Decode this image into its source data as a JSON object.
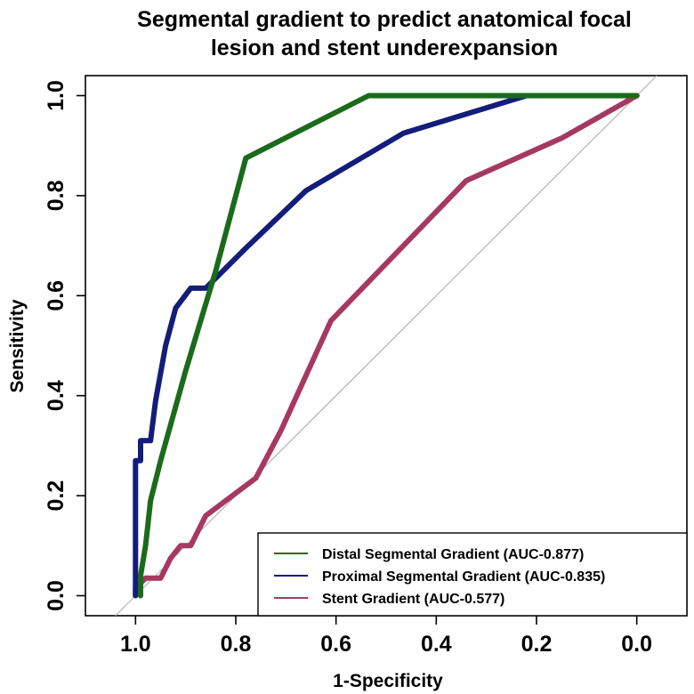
{
  "chart_data": {
    "type": "line",
    "title_lines": [
      "Segmental gradient to predict anatomical focal",
      "lesion and stent underexpansion"
    ],
    "xlabel": "1-Specificity",
    "ylabel": "Sensitivity",
    "xlim": [
      1.1,
      -0.1
    ],
    "ylim": [
      -0.04,
      1.04
    ],
    "x_ticks": [
      1.0,
      0.8,
      0.6,
      0.4,
      0.2,
      0.0
    ],
    "x_tick_labels": [
      "1.0",
      "0.8",
      "0.6",
      "0.4",
      "0.2",
      "0.0"
    ],
    "y_ticks": [
      0.0,
      0.2,
      0.4,
      0.6,
      0.8,
      1.0
    ],
    "y_tick_labels": [
      "0.0",
      "0.2",
      "0.4",
      "0.6",
      "0.8",
      "1.0"
    ],
    "diagonal": {
      "from": [
        1.04,
        -0.04
      ],
      "to": [
        -0.04,
        1.04
      ],
      "color": "#b3b3b3"
    },
    "legend_position": "bottom-right",
    "series": [
      {
        "name": "Distal Segmental Gradient (AUC-0.877)",
        "color": "#1a6b1a",
        "points": [
          [
            0.99,
            0.0
          ],
          [
            0.99,
            0.04
          ],
          [
            0.98,
            0.1
          ],
          [
            0.97,
            0.19
          ],
          [
            0.95,
            0.27
          ],
          [
            0.9,
            0.45
          ],
          [
            0.84,
            0.65
          ],
          [
            0.78,
            0.875
          ],
          [
            0.535,
            1.0
          ],
          [
            0.0,
            1.0
          ]
        ]
      },
      {
        "name": "Proximal Segmental Gradient (AUC-0.835)",
        "color": "#131d7a",
        "points": [
          [
            1.0,
            0.0
          ],
          [
            1.0,
            0.27
          ],
          [
            0.99,
            0.27
          ],
          [
            0.99,
            0.31
          ],
          [
            0.97,
            0.31
          ],
          [
            0.96,
            0.39
          ],
          [
            0.94,
            0.5
          ],
          [
            0.92,
            0.575
          ],
          [
            0.89,
            0.615
          ],
          [
            0.86,
            0.615
          ],
          [
            0.78,
            0.695
          ],
          [
            0.66,
            0.81
          ],
          [
            0.465,
            0.925
          ],
          [
            0.22,
            1.0
          ],
          [
            0.0,
            1.0
          ]
        ]
      },
      {
        "name": "Stent Gradient (AUC-0.577)",
        "color": "#a63862",
        "points": [
          [
            1.0,
            0.0
          ],
          [
            1.0,
            0.015
          ],
          [
            0.98,
            0.035
          ],
          [
            0.95,
            0.035
          ],
          [
            0.93,
            0.075
          ],
          [
            0.91,
            0.1
          ],
          [
            0.89,
            0.1
          ],
          [
            0.86,
            0.16
          ],
          [
            0.76,
            0.235
          ],
          [
            0.71,
            0.33
          ],
          [
            0.61,
            0.55
          ],
          [
            0.34,
            0.83
          ],
          [
            0.15,
            0.915
          ],
          [
            0.0,
            1.0
          ]
        ]
      }
    ]
  }
}
